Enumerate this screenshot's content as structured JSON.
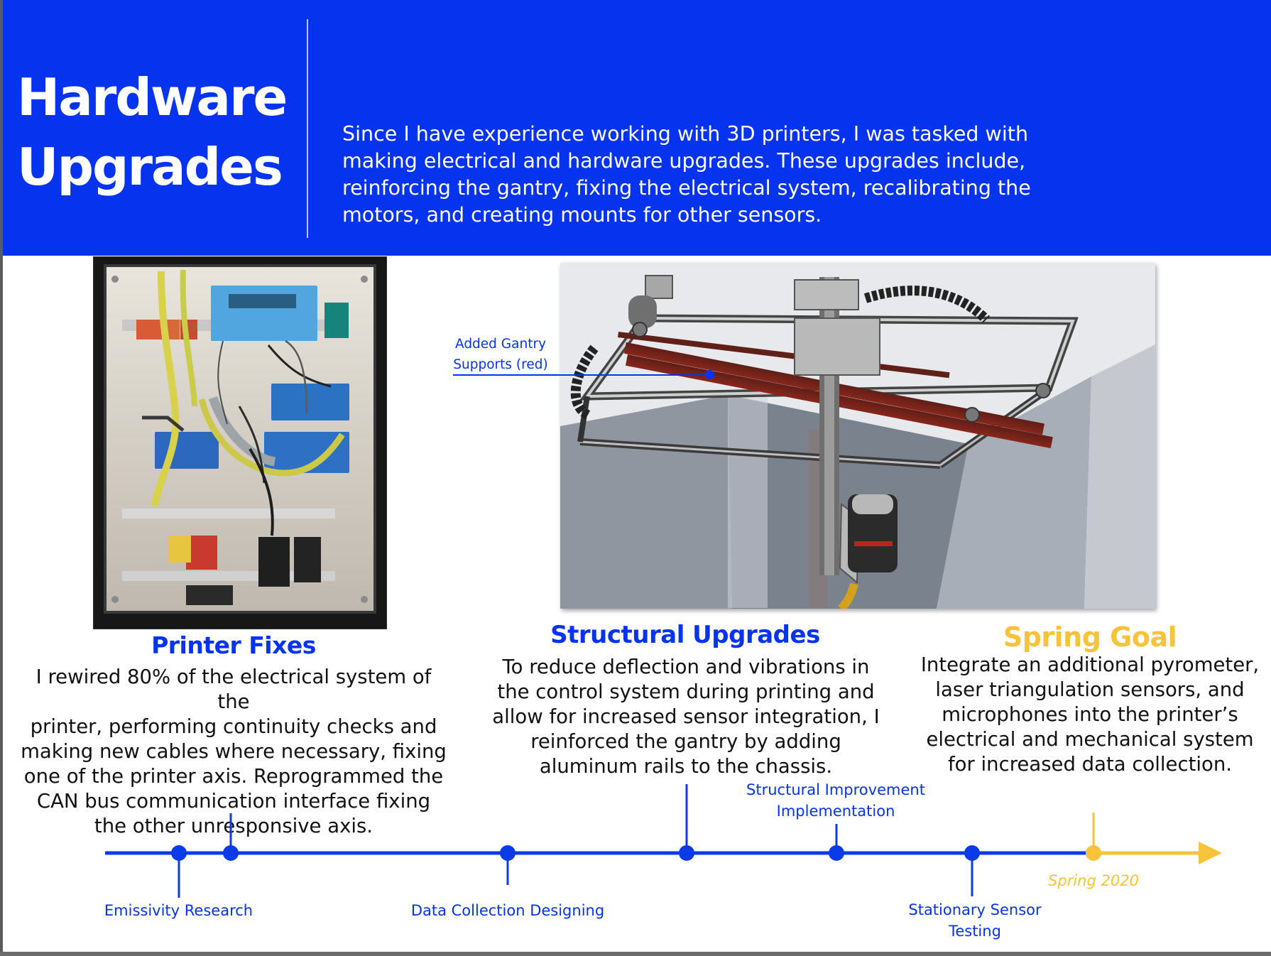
{
  "header": {
    "title": "Hardware Upgrades",
    "intro": "Since I have experience working with 3D printers, I was tasked with\nmaking electrical and hardware upgrades. These upgrades include,\nreinforcing the gantry, fixing the electrical system,  recalibrating the\nmotors, and creating mounts for other sensors."
  },
  "callout": {
    "label": "Added Gantry\nSupports (red)"
  },
  "sections": {
    "printer_fixes": {
      "title": "Printer Fixes",
      "body": "I rewired 80% of the electrical system of the\nprinter, performing continuity checks and\nmaking new cables where necessary, fixing\none of the printer axis. Reprogrammed the\nCAN bus communication interface fixing\nthe other unresponsive axis."
    },
    "structural_upgrades": {
      "title": "Structural Upgrades",
      "body": "To reduce deflection and vibrations in\nthe control system during printing and\nallow for increased sensor integration, I\nreinforced the gantry by adding\naluminum rails to the chassis."
    },
    "spring_goal": {
      "title": "Spring Goal",
      "body": "Integrate an additional pyrometer,\nlaser triangulation sensors, and\nmicrophones into the printer’s\nelectrical and mechanical system\nfor increased data collection."
    }
  },
  "timeline": {
    "labels": {
      "emissivity": "Emissivity Research",
      "data_collection": "Data Collection Designing",
      "structural_improvement": "Structural Improvement\nImplementation",
      "stationary_sensor": "Stationary Sensor\nTesting",
      "spring_2020": "Spring 2020"
    }
  },
  "colors": {
    "header_blue": "#0533ee",
    "accent_blue": "#0533ee",
    "timeline_blue": "#0b3be6",
    "gold": "#f7c33a",
    "text_dark": "#111111",
    "white": "#ffffff"
  },
  "images": {
    "photo_panel": "electrical-cabinet-photo",
    "cad_panel": "gantry-cad-render"
  }
}
